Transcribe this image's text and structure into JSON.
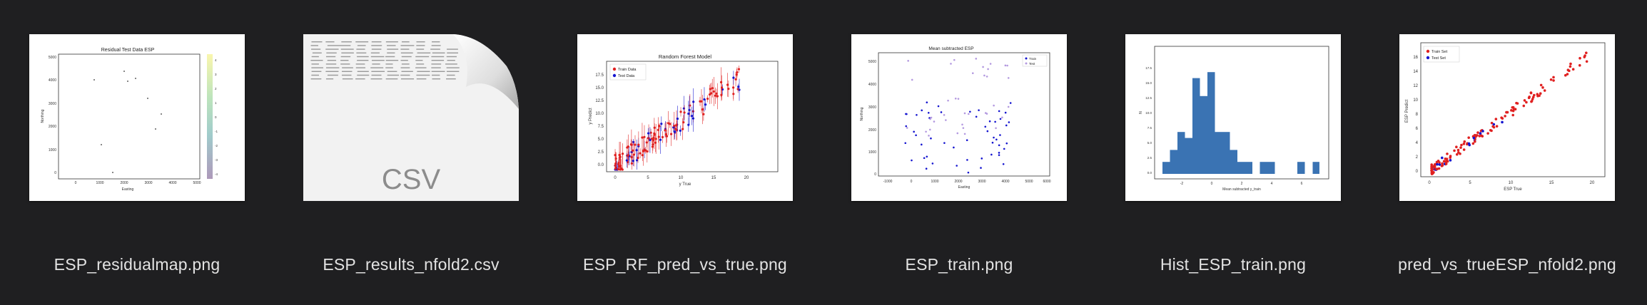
{
  "files": [
    {
      "name": "ESP_residualmap.png",
      "kind": "image"
    },
    {
      "name": "ESP_results_nfold2.csv",
      "kind": "csv"
    },
    {
      "name": "ESP_RF_pred_vs_true.png",
      "kind": "image"
    },
    {
      "name": "ESP_train.png",
      "kind": "image"
    },
    {
      "name": "Hist_ESP_train.png",
      "kind": "image"
    },
    {
      "name": "pred_vs_trueESP_nfold2.png",
      "kind": "image"
    }
  ],
  "csv_badge": "CSV",
  "thumb_text": {
    "residual": {
      "title": "Residual Test Data ESP",
      "xlabel": "Easting",
      "ylabel": "Northing",
      "xticks": [
        "0",
        "1000",
        "2000",
        "3000",
        "4000",
        "5000"
      ],
      "yticks": [
        "0",
        "1000",
        "2000",
        "3000",
        "4000",
        "5000"
      ],
      "cbar": [
        "4",
        "3",
        "2",
        "1",
        "0",
        "-1",
        "-2",
        "-3",
        "-4"
      ]
    },
    "rf": {
      "title": "Random Forest Model",
      "xlabel": "y True",
      "ylabel": "y Predict",
      "xticks": [
        "0",
        "5",
        "10",
        "15",
        "20"
      ],
      "yticks": [
        "0.0",
        "2.5",
        "5.0",
        "7.5",
        "10.0",
        "12.5",
        "15.0",
        "17.5"
      ],
      "legend": [
        "Train Data",
        "Test Data"
      ]
    },
    "train": {
      "title": "Mean subtracted ESP",
      "xlabel": "Easting",
      "ylabel": "Northing",
      "xticks": [
        "-1000",
        "0",
        "1000",
        "2000",
        "3000",
        "4000",
        "5000",
        "6000"
      ],
      "yticks": [
        "0",
        "1000",
        "2000",
        "3000",
        "4000",
        "5000"
      ],
      "legend": [
        "Train",
        "Test"
      ]
    },
    "hist": {
      "xlabel": "Mean subtracted y_train",
      "ylabel": "N",
      "xticks": [
        "-2",
        "0",
        "2",
        "4",
        "6"
      ],
      "yticks": [
        "0.0",
        "2.5",
        "5.0",
        "7.5",
        "10.0",
        "12.5",
        "15.0",
        "17.5"
      ]
    },
    "pvt": {
      "xlabel": "ESP True",
      "ylabel": "ESP Predict",
      "xticks": [
        "0",
        "5",
        "10",
        "15",
        "20"
      ],
      "yticks": [
        "0",
        "2",
        "4",
        "6",
        "8",
        "10",
        "12",
        "14",
        "16"
      ],
      "legend": [
        "Train Set",
        "Test Set"
      ]
    }
  },
  "colors": {
    "background": "#1f1f21",
    "label": "#e3e3e3",
    "train": "#e02020",
    "test": "#1515d0",
    "hist": "#3a73b3"
  }
}
